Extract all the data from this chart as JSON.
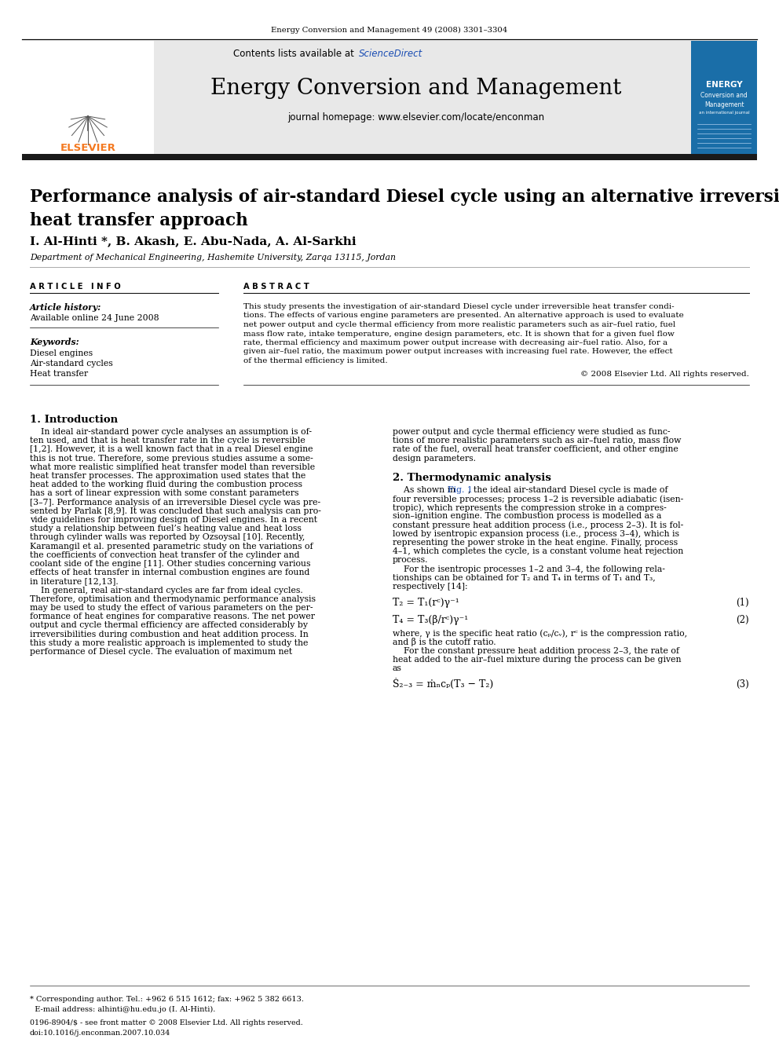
{
  "journal_ref": "Energy Conversion and Management 49 (2008) 3301–3304",
  "contents_text": "Contents lists available at ",
  "sciencedirect_text": "ScienceDirect",
  "journal_name": "Energy Conversion and Management",
  "journal_homepage": "journal homepage: www.elsevier.com/locate/enconman",
  "paper_title": "Performance analysis of air-standard Diesel cycle using an alternative irreversible\nheat transfer approach",
  "authors": "I. Al-Hinti *, B. Akash, E. Abu-Nada, A. Al-Sarkhi",
  "affiliation": "Department of Mechanical Engineering, Hashemite University, Zarqa 13115, Jordan",
  "article_history_label": "Article history:",
  "available_online": "Available online 24 June 2008",
  "keywords_label": "Keywords:",
  "keywords": [
    "Diesel engines",
    "Air-standard cycles",
    "Heat transfer"
  ],
  "abstract_text": "This study presents the investigation of air-standard Diesel cycle under irreversible heat transfer conditions. The effects of various engine parameters are presented. An alternative approach is used to evaluate net power output and cycle thermal efficiency from more realistic parameters such as air–fuel ratio, fuel mass flow rate, intake temperature, engine design parameters, etc. It is shown that for a given fuel flow rate, thermal efficiency and maximum power output increase with decreasing air–fuel ratio. Also, for a given air–fuel ratio, the maximum power output increases with increasing fuel rate. However, the effect of the thermal efficiency is limited.",
  "copyright": "© 2008 Elsevier Ltd. All rights reserved.",
  "section1_title": "1. Introduction",
  "section2_title": "2. Thermodynamic analysis",
  "footnote_text": "* Corresponding author. Tel.: +962 6 515 1612; fax: +962 5 382 6613.\n  E-mail address: alhinti@hu.edu.jo (I. Al-Hinti).",
  "issn_text": "0196-8904/$ - see front matter © 2008 Elsevier Ltd. All rights reserved.\ndoi:10.1016/j.enconman.2007.10.034",
  "bg_color": "#ffffff",
  "header_bg": "#e8e8e8",
  "dark_bar_color": "#1a1a1a",
  "elsevier_color": "#f47920",
  "sciencedirect_color": "#1a4db3",
  "link_color": "#1a4db3"
}
